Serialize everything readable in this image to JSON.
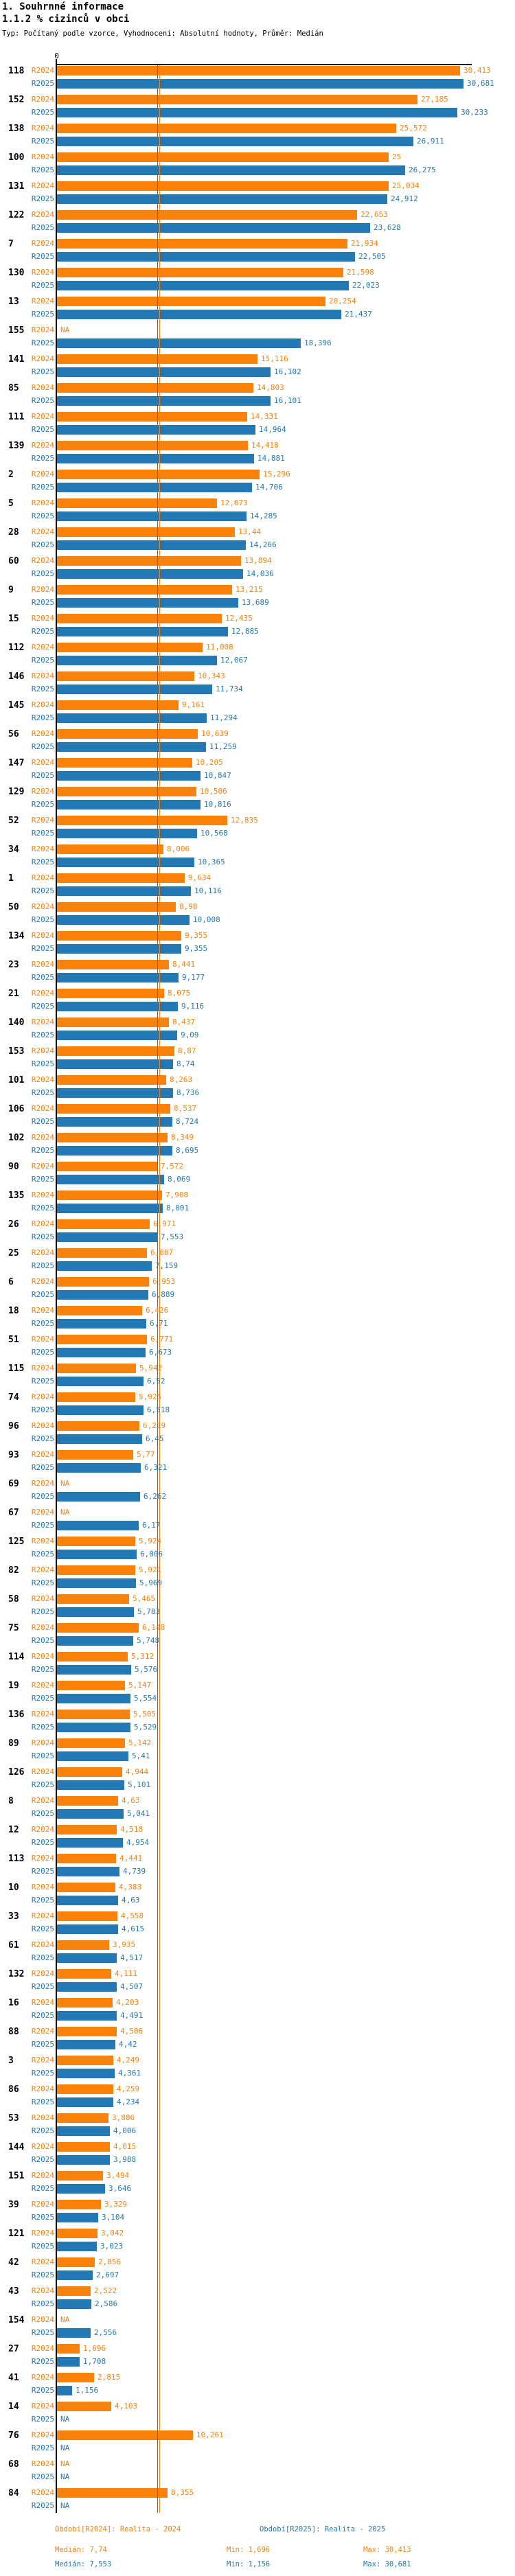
{
  "page": {
    "title": "1. Souhrnné informace",
    "subtitle": "1.1.2 % cizinců v obci",
    "meta": "Typ: Počítaný podle vzorce, Vyhodnocení: Absolutní hodnoty, Průměr: Medián"
  },
  "colors": {
    "r2024": "#f9820c",
    "r2025": "#2478b4",
    "axis": "#000000"
  },
  "axis": {
    "zero_label": "0"
  },
  "series_labels": {
    "r2024": "R2024",
    "r2025": "R2025"
  },
  "na_label": "NA",
  "chart_data": {
    "type": "bar",
    "orientation": "horizontal",
    "title": "1.1.2 % cizinců v obci",
    "value_format": "decimal-comma",
    "xlim": [
      0,
      31.5
    ],
    "series": [
      "R2024",
      "R2025"
    ],
    "medians": {
      "r2024": 7.74,
      "r2025": 7.553
    },
    "stats": {
      "r2024": {
        "median": 7.74,
        "min": 1.696,
        "max": 30.413
      },
      "r2025": {
        "median": 7.553,
        "min": 1.156,
        "max": 30.681
      }
    },
    "rows": [
      {
        "id": "118",
        "r2024": "30,413",
        "r2025": "30,681"
      },
      {
        "id": "152",
        "r2024": "27,185",
        "r2025": "30,233"
      },
      {
        "id": "138",
        "r2024": "25,572",
        "r2025": "26,911"
      },
      {
        "id": "100",
        "r2024": "25",
        "r2025": "26,275"
      },
      {
        "id": "131",
        "r2024": "25,034",
        "r2025": "24,912"
      },
      {
        "id": "122",
        "r2024": "22,653",
        "r2025": "23,628"
      },
      {
        "id": "7",
        "r2024": "21,934",
        "r2025": "22,505"
      },
      {
        "id": "130",
        "r2024": "21,598",
        "r2025": "22,023"
      },
      {
        "id": "13",
        "r2024": "20,254",
        "r2025": "21,437"
      },
      {
        "id": "155",
        "r2024": "NA",
        "r2025": "18,396"
      },
      {
        "id": "141",
        "r2024": "15,116",
        "r2025": "16,102"
      },
      {
        "id": "85",
        "r2024": "14,803",
        "r2025": "16,101"
      },
      {
        "id": "111",
        "r2024": "14,331",
        "r2025": "14,964"
      },
      {
        "id": "139",
        "r2024": "14,418",
        "r2025": "14,881"
      },
      {
        "id": "2",
        "r2024": "15,296",
        "r2025": "14,706"
      },
      {
        "id": "5",
        "r2024": "12,073",
        "r2025": "14,285"
      },
      {
        "id": "28",
        "r2024": "13,44",
        "r2025": "14,266"
      },
      {
        "id": "60",
        "r2024": "13,894",
        "r2025": "14,036"
      },
      {
        "id": "9",
        "r2024": "13,215",
        "r2025": "13,689"
      },
      {
        "id": "15",
        "r2024": "12,435",
        "r2025": "12,885"
      },
      {
        "id": "112",
        "r2024": "11,008",
        "r2025": "12,067"
      },
      {
        "id": "146",
        "r2024": "10,343",
        "r2025": "11,734"
      },
      {
        "id": "145",
        "r2024": "9,161",
        "r2025": "11,294"
      },
      {
        "id": "56",
        "r2024": "10,639",
        "r2025": "11,259"
      },
      {
        "id": "147",
        "r2024": "10,205",
        "r2025": "10,847"
      },
      {
        "id": "129",
        "r2024": "10,506",
        "r2025": "10,816"
      },
      {
        "id": "52",
        "r2024": "12,835",
        "r2025": "10,568"
      },
      {
        "id": "34",
        "r2024": "8,006",
        "r2025": "10,365"
      },
      {
        "id": "1",
        "r2024": "9,634",
        "r2025": "10,116"
      },
      {
        "id": "50",
        "r2024": "8,98",
        "r2025": "10,008"
      },
      {
        "id": "134",
        "r2024": "9,355",
        "r2025": "9,355"
      },
      {
        "id": "23",
        "r2024": "8,441",
        "r2025": "9,177"
      },
      {
        "id": "21",
        "r2024": "8,075",
        "r2025": "9,116"
      },
      {
        "id": "140",
        "r2024": "8,437",
        "r2025": "9,09"
      },
      {
        "id": "153",
        "r2024": "8,87",
        "r2025": "8,74"
      },
      {
        "id": "101",
        "r2024": "8,263",
        "r2025": "8,736"
      },
      {
        "id": "106",
        "r2024": "8,537",
        "r2025": "8,724"
      },
      {
        "id": "102",
        "r2024": "8,349",
        "r2025": "8,695"
      },
      {
        "id": "90",
        "r2024": "7,572",
        "r2025": "8,069"
      },
      {
        "id": "135",
        "r2024": "7,908",
        "r2025": "8,001"
      },
      {
        "id": "26",
        "r2024": "6,971",
        "r2025": "7,553"
      },
      {
        "id": "25",
        "r2024": "6,807",
        "r2025": "7,159"
      },
      {
        "id": "6",
        "r2024": "6,953",
        "r2025": "6,889"
      },
      {
        "id": "18",
        "r2024": "6,426",
        "r2025": "6,71"
      },
      {
        "id": "51",
        "r2024": "6,771",
        "r2025": "6,673"
      },
      {
        "id": "115",
        "r2024": "5,942",
        "r2025": "6,52"
      },
      {
        "id": "74",
        "r2024": "5,925",
        "r2025": "6,518"
      },
      {
        "id": "96",
        "r2024": "6,219",
        "r2025": "6,45"
      },
      {
        "id": "93",
        "r2024": "5,77",
        "r2025": "6,321"
      },
      {
        "id": "69",
        "r2024": "NA",
        "r2025": "6,262"
      },
      {
        "id": "67",
        "r2024": "NA",
        "r2025": "6,17"
      },
      {
        "id": "125",
        "r2024": "5,924",
        "r2025": "6,006"
      },
      {
        "id": "82",
        "r2024": "5,921",
        "r2025": "5,969"
      },
      {
        "id": "58",
        "r2024": "5,465",
        "r2025": "5,783"
      },
      {
        "id": "75",
        "r2024": "6,148",
        "r2025": "5,748"
      },
      {
        "id": "114",
        "r2024": "5,312",
        "r2025": "5,576"
      },
      {
        "id": "19",
        "r2024": "5,147",
        "r2025": "5,554"
      },
      {
        "id": "136",
        "r2024": "5,505",
        "r2025": "5,529"
      },
      {
        "id": "89",
        "r2024": "5,142",
        "r2025": "5,41"
      },
      {
        "id": "126",
        "r2024": "4,944",
        "r2025": "5,101"
      },
      {
        "id": "8",
        "r2024": "4,63",
        "r2025": "5,041"
      },
      {
        "id": "12",
        "r2024": "4,518",
        "r2025": "4,954"
      },
      {
        "id": "113",
        "r2024": "4,441",
        "r2025": "4,739"
      },
      {
        "id": "10",
        "r2024": "4,383",
        "r2025": "4,63"
      },
      {
        "id": "33",
        "r2024": "4,558",
        "r2025": "4,615"
      },
      {
        "id": "61",
        "r2024": "3,935",
        "r2025": "4,517"
      },
      {
        "id": "132",
        "r2024": "4,111",
        "r2025": "4,507"
      },
      {
        "id": "16",
        "r2024": "4,203",
        "r2025": "4,491"
      },
      {
        "id": "88",
        "r2024": "4,506",
        "r2025": "4,42"
      },
      {
        "id": "3",
        "r2024": "4,249",
        "r2025": "4,361"
      },
      {
        "id": "86",
        "r2024": "4,259",
        "r2025": "4,234"
      },
      {
        "id": "53",
        "r2024": "3,886",
        "r2025": "4,006"
      },
      {
        "id": "144",
        "r2024": "4,015",
        "r2025": "3,988"
      },
      {
        "id": "151",
        "r2024": "3,494",
        "r2025": "3,646"
      },
      {
        "id": "39",
        "r2024": "3,329",
        "r2025": "3,104"
      },
      {
        "id": "121",
        "r2024": "3,042",
        "r2025": "3,023"
      },
      {
        "id": "42",
        "r2024": "2,856",
        "r2025": "2,697"
      },
      {
        "id": "43",
        "r2024": "2,522",
        "r2025": "2,586"
      },
      {
        "id": "154",
        "r2024": "NA",
        "r2025": "2,556"
      },
      {
        "id": "27",
        "r2024": "1,696",
        "r2025": "1,708"
      },
      {
        "id": "41",
        "r2024": "2,815",
        "r2025": "1,156"
      },
      {
        "id": "14",
        "r2024": "4,103",
        "r2025": "NA"
      },
      {
        "id": "76",
        "r2024": "10,261",
        "r2025": "NA"
      },
      {
        "id": "68",
        "r2024": "NA",
        "r2025": "NA"
      },
      {
        "id": "84",
        "r2024": "8,355",
        "r2025": "NA"
      }
    ]
  },
  "legend": {
    "period_r2024": "Období[R2024]: Realita - 2024",
    "period_r2025": "Období[R2025]: Realita - 2025",
    "r2024": {
      "median": "Medián: 7,74",
      "min": "Min: 1,696",
      "max": "Max: 30,413"
    },
    "r2025": {
      "median": "Medián: 7,553",
      "min": "Min: 1,156",
      "max": "Max: 30,681"
    }
  }
}
